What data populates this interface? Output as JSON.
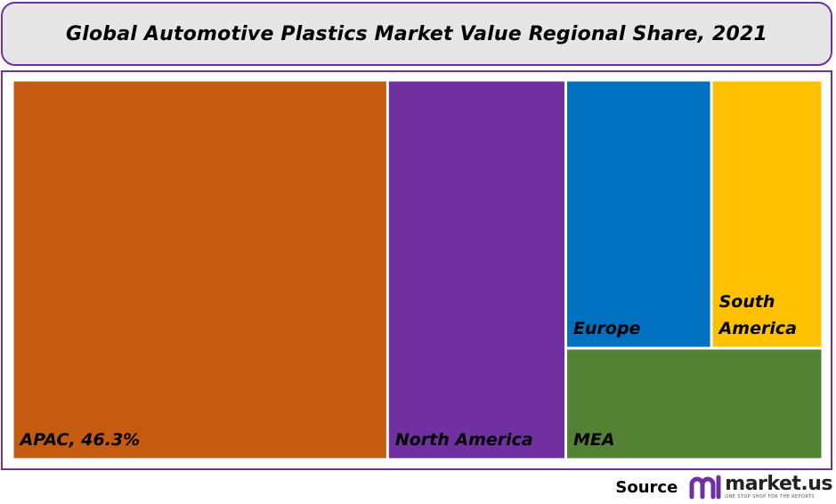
{
  "chart_data": {
    "type": "treemap",
    "title": "Global Automotive Plastics Market Value Regional Share, 2021",
    "unit": "%",
    "items": [
      {
        "name": "APAC",
        "label": "APAC, 46.3%",
        "value": 46.3,
        "color": "#c55a11"
      },
      {
        "name": "North America",
        "label": "North America",
        "value": 22.0,
        "color": "#7030a0"
      },
      {
        "name": "Europe",
        "label": "Europe",
        "value": 12.7,
        "color": "#0070c0"
      },
      {
        "name": "South America",
        "label": "South America",
        "value": 9.7,
        "color": "#ffc000"
      },
      {
        "name": "MEA",
        "label": "MEA",
        "value": 9.3,
        "color": "#548235"
      }
    ]
  },
  "footer": {
    "source_label": "Source",
    "logo_name": "market.us",
    "logo_tagline": "ONE STOP SHOP FOR THE REPORTS",
    "logo_color": "#7030a0"
  }
}
